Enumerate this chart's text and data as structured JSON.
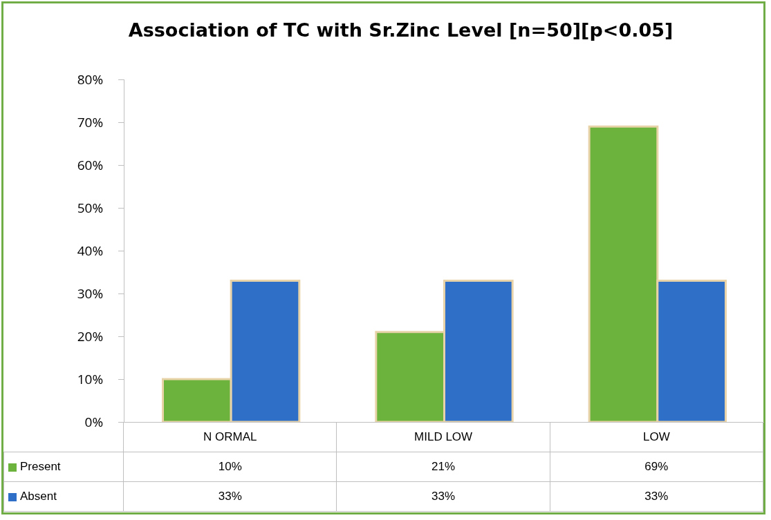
{
  "chart_data": {
    "type": "bar",
    "title": "Association of TC with Sr.Zinc Level [n=50][p<0.05]",
    "categories": [
      "N ORMAL",
      "MILD LOW",
      "LOW"
    ],
    "series": [
      {
        "name": "Present",
        "color": "#6cb33e",
        "values": [
          10,
          21,
          69
        ],
        "value_labels": [
          "10%",
          "21%",
          "69%"
        ]
      },
      {
        "name": "Absent",
        "color": "#2f6fc7",
        "values": [
          33,
          33,
          33
        ],
        "value_labels": [
          "33%",
          "33%",
          "33%"
        ]
      }
    ],
    "ylim": [
      0,
      80
    ],
    "yticks": [
      {
        "value": 0,
        "label": "0%"
      },
      {
        "value": 10,
        "label": "10%"
      },
      {
        "value": 20,
        "label": "20%"
      },
      {
        "value": 30,
        "label": "30%"
      },
      {
        "value": 40,
        "label": "40%"
      },
      {
        "value": 50,
        "label": "50%"
      },
      {
        "value": 60,
        "label": "60%"
      },
      {
        "value": 70,
        "label": "70%"
      },
      {
        "value": 80,
        "label": "80%"
      }
    ],
    "grid": false,
    "legend": "bottom"
  }
}
